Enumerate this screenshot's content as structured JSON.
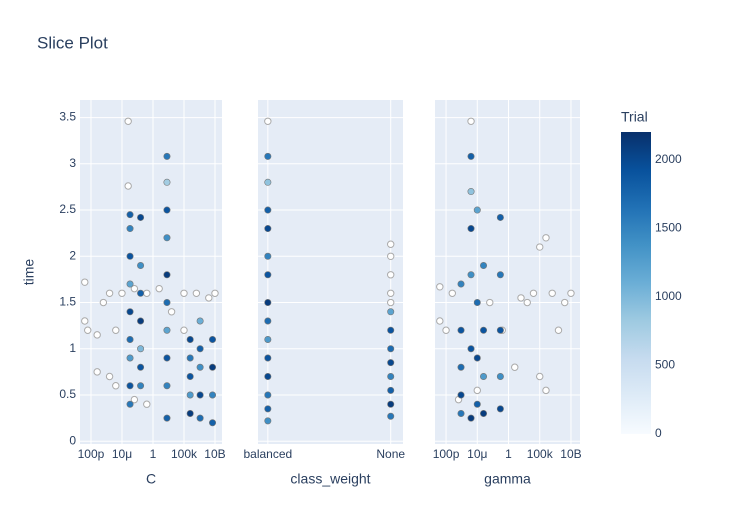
{
  "chart_data": {
    "type": "scatter",
    "title": "Slice Plot",
    "ylabel": "time",
    "ylim": [
      -0.03,
      3.69
    ],
    "yticks": [
      0,
      0.5,
      1,
      1.5,
      2,
      2.5,
      3,
      3.5
    ],
    "grid": true,
    "other_color": "#aaaaaa",
    "colorbar": {
      "title": "Trial",
      "lim": [
        0,
        2204
      ],
      "ticks": [
        0,
        500,
        1000,
        1500,
        2000
      ],
      "colorscale": [
        "#f7fbff",
        "#deebf7",
        "#c6dbef",
        "#9ecae1",
        "#6baed6",
        "#4292c6",
        "#2171b5",
        "#08519c",
        "#08306b"
      ]
    },
    "panels": [
      {
        "xlabel": "C",
        "xscale": "log",
        "xlim": [
          1.7e-12,
          135000000000.0
        ],
        "xticks": [
          {
            "value": 1e-10,
            "label": "100p"
          },
          {
            "value": 1e-05,
            "label": "10μ"
          },
          1,
          {
            "value": 100000,
            "label": "100k"
          },
          {
            "value": 10000000000,
            "label": "10B"
          }
        ],
        "x": [
          0.0002,
          0.0002,
          0.0002,
          0.0002,
          0.0002,
          0.0002,
          0.0002,
          0.0002,
          0.0002,
          0.01,
          0.01,
          0.01,
          0.01,
          0.01,
          0.01,
          0.01,
          180,
          180,
          180,
          180,
          180,
          180,
          180,
          180,
          180,
          180,
          1000000.0,
          1000000.0,
          1000000.0,
          1000000.0,
          1000000.0,
          40000000.0,
          40000000.0,
          40000000.0,
          40000000.0,
          40000000.0,
          4000000000.0,
          4000000000.0,
          4000000000.0,
          4000000000.0
        ],
        "y": [
          2.45,
          2.3,
          2.0,
          1.7,
          1.4,
          1.1,
          0.9,
          0.6,
          0.4,
          1.9,
          1.6,
          1.3,
          1.0,
          0.8,
          0.6,
          2.42,
          3.08,
          2.8,
          2.5,
          2.2,
          1.8,
          1.5,
          1.2,
          0.9,
          0.6,
          0.25,
          1.1,
          0.9,
          0.7,
          0.5,
          0.3,
          1.3,
          1.0,
          0.8,
          0.5,
          0.25,
          1.1,
          0.8,
          0.5,
          0.2
        ],
        "trial": [
          1800,
          1500,
          1900,
          1200,
          2000,
          1700,
          1300,
          1900,
          1600,
          1400,
          1800,
          2100,
          1000,
          1900,
          1500,
          2000,
          1600,
          800,
          1900,
          1400,
          2100,
          1700,
          1200,
          1900,
          1500,
          1800,
          2000,
          1600,
          1900,
          1300,
          2100,
          1100,
          1800,
          1400,
          2000,
          1700,
          1900,
          2100,
          1500,
          1800
        ],
        "x_other": [
          1e-11,
          1e-11,
          3e-11,
          1e-09,
          1e-09,
          1e-08,
          1e-07,
          1e-07,
          1e-06,
          1e-06,
          1e-05,
          0.0001,
          0.0001,
          0.001,
          0.1,
          10,
          1000,
          100000.0,
          100000.0,
          10000000.0,
          1000000000.0,
          10000000000.0,
          0.001,
          0.1
        ],
        "y_other": [
          1.72,
          1.3,
          1.2,
          1.15,
          0.75,
          1.5,
          0.7,
          1.6,
          0.6,
          1.2,
          1.6,
          3.46,
          2.76,
          1.65,
          1.6,
          1.65,
          1.4,
          1.6,
          1.2,
          1.6,
          1.55,
          1.6,
          0.45,
          0.4
        ]
      },
      {
        "xlabel": "class_weight",
        "categories": [
          "balanced",
          "None"
        ],
        "x": [
          "balanced",
          "balanced",
          "balanced",
          "balanced",
          "balanced",
          "balanced",
          "balanced",
          "balanced",
          "balanced",
          "balanced",
          "balanced",
          "balanced",
          "balanced",
          "balanced",
          "None",
          "None",
          "None",
          "None",
          "None",
          "None",
          "None",
          "None"
        ],
        "y": [
          3.08,
          2.8,
          2.5,
          2.3,
          2.0,
          1.8,
          1.5,
          1.3,
          1.1,
          0.9,
          0.7,
          0.5,
          0.35,
          0.22,
          1.4,
          1.2,
          1.0,
          0.85,
          0.7,
          0.55,
          0.4,
          0.27
        ],
        "trial": [
          1600,
          900,
          1800,
          2000,
          1500,
          1900,
          2100,
          1700,
          1300,
          1900,
          2000,
          1600,
          1800,
          1400,
          1200,
          1900,
          1700,
          2000,
          1500,
          1800,
          2100,
          1600
        ],
        "x_other": [
          "balanced",
          "None",
          "None",
          "None",
          "None",
          "None"
        ],
        "y_other": [
          3.46,
          2.13,
          2.0,
          1.8,
          1.6,
          1.5
        ]
      },
      {
        "xlabel": "gamma",
        "xscale": "log",
        "xlim": [
          1.7e-12,
          280000000000.0
        ],
        "xticks": [
          {
            "value": 1e-10,
            "label": "100p"
          },
          {
            "value": 1e-05,
            "label": "10μ"
          },
          1,
          {
            "value": 100000,
            "label": "100k"
          },
          {
            "value": 10000000000,
            "label": "10B"
          }
        ],
        "x": [
          2.5e-08,
          2.5e-08,
          2.5e-08,
          2.5e-08,
          2.5e-08,
          1e-06,
          1e-06,
          1e-06,
          1e-06,
          1e-06,
          1e-06,
          1e-05,
          1e-05,
          1e-05,
          1e-05,
          0.0001,
          0.0001,
          0.0001,
          0.0001,
          0.05,
          0.05,
          0.05,
          0.05,
          0.05
        ],
        "y": [
          1.7,
          1.2,
          0.8,
          0.5,
          0.3,
          3.08,
          2.7,
          2.3,
          1.8,
          1.0,
          0.25,
          2.5,
          1.5,
          0.9,
          0.4,
          1.9,
          1.2,
          0.7,
          0.3,
          2.42,
          1.8,
          1.2,
          0.7,
          0.35
        ],
        "trial": [
          1500,
          1900,
          1700,
          2000,
          1600,
          1800,
          900,
          2000,
          1400,
          1900,
          2100,
          1200,
          1700,
          2000,
          1800,
          1500,
          1900,
          1300,
          2100,
          1800,
          1600,
          1900,
          1400,
          2000
        ],
        "x_other": [
          1e-11,
          1e-11,
          1e-10,
          1e-09,
          1e-08,
          1e-06,
          1e-05,
          0.001,
          0.1,
          10,
          100,
          1000.0,
          10000.0,
          100000.0,
          1000000.0,
          10000000.0,
          100000000.0,
          1000000000.0,
          10000000000.0,
          1000000.0,
          100000.0
        ],
        "y_other": [
          1.67,
          1.3,
          1.2,
          1.6,
          0.45,
          3.46,
          0.55,
          1.5,
          1.2,
          0.8,
          1.55,
          1.5,
          1.6,
          0.7,
          2.2,
          1.6,
          1.2,
          1.5,
          1.6,
          0.55,
          2.1
        ]
      }
    ]
  }
}
